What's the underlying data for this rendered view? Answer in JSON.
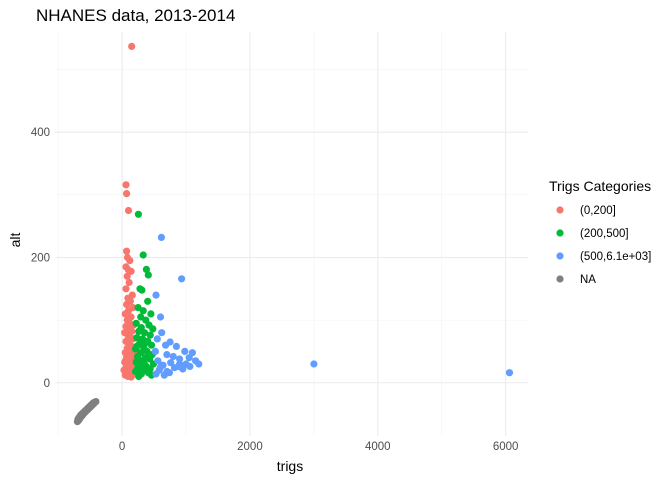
{
  "chart_data": {
    "type": "scatter",
    "title": "NHANES data, 2013-2014",
    "xlabel": "trigs",
    "ylabel": "alt",
    "xlim": [
      -1050,
      6350
    ],
    "ylim": [
      -85,
      560
    ],
    "x_ticks": [
      0,
      2000,
      4000,
      6000
    ],
    "x_minor": [
      -1000,
      1000,
      3000,
      5000
    ],
    "y_ticks": [
      0,
      200,
      400
    ],
    "y_minor": [
      -100,
      100,
      300,
      500
    ],
    "grid": true,
    "legend": {
      "title": "Trigs Categories",
      "position": "right",
      "entries": [
        {
          "label": "(0,200]",
          "color": "#F8766D"
        },
        {
          "label": "(200,500]",
          "color": "#00BA38"
        },
        {
          "label": "(500,6.1e+03]",
          "color": "#619CFF"
        },
        {
          "label": "NA",
          "color": "#7F7F7F"
        }
      ]
    },
    "series": [
      {
        "name": "(0,200]",
        "color": "#F8766D",
        "points": [
          [
            150,
            537
          ],
          [
            60,
            316
          ],
          [
            70,
            302
          ],
          [
            100,
            275
          ],
          [
            70,
            210
          ],
          [
            85,
            200
          ],
          [
            120,
            195
          ],
          [
            60,
            185
          ],
          [
            100,
            180
          ],
          [
            140,
            178
          ],
          [
            80,
            170
          ],
          [
            110,
            160
          ],
          [
            60,
            150
          ],
          [
            160,
            140
          ],
          [
            90,
            135
          ],
          [
            130,
            130
          ],
          [
            70,
            125
          ],
          [
            170,
            120
          ],
          [
            100,
            115
          ],
          [
            50,
            110
          ],
          [
            140,
            105
          ],
          [
            80,
            100
          ],
          [
            120,
            95
          ],
          [
            180,
            92
          ],
          [
            60,
            90
          ],
          [
            100,
            85
          ],
          [
            150,
            82
          ],
          [
            40,
            80
          ],
          [
            90,
            76
          ],
          [
            130,
            72
          ],
          [
            170,
            70
          ],
          [
            60,
            66
          ],
          [
            110,
            62
          ],
          [
            150,
            58
          ],
          [
            80,
            55
          ],
          [
            120,
            52
          ],
          [
            190,
            50
          ],
          [
            50,
            48
          ],
          [
            100,
            45
          ],
          [
            140,
            42
          ],
          [
            70,
            40
          ],
          [
            160,
            38
          ],
          [
            110,
            35
          ],
          [
            40,
            33
          ],
          [
            90,
            30
          ],
          [
            130,
            28
          ],
          [
            180,
            26
          ],
          [
            60,
            24
          ],
          [
            100,
            22
          ],
          [
            150,
            20
          ],
          [
            80,
            18
          ],
          [
            120,
            16
          ],
          [
            170,
            14
          ],
          [
            50,
            12
          ],
          [
            90,
            10
          ],
          [
            140,
            9
          ],
          [
            70,
            15
          ],
          [
            110,
            25
          ],
          [
            160,
            32
          ],
          [
            30,
            20
          ],
          [
            195,
            40
          ],
          [
            60,
            36
          ],
          [
            130,
            44
          ]
        ]
      },
      {
        "name": "(200,500]",
        "color": "#00BA38",
        "points": [
          [
            255,
            269
          ],
          [
            330,
            204
          ],
          [
            380,
            181
          ],
          [
            410,
            172
          ],
          [
            280,
            150
          ],
          [
            310,
            148
          ],
          [
            400,
            130
          ],
          [
            250,
            120
          ],
          [
            330,
            115
          ],
          [
            450,
            110
          ],
          [
            290,
            105
          ],
          [
            370,
            100
          ],
          [
            220,
            95
          ],
          [
            420,
            92
          ],
          [
            300,
            88
          ],
          [
            480,
            86
          ],
          [
            260,
            82
          ],
          [
            350,
            80
          ],
          [
            440,
            76
          ],
          [
            230,
            72
          ],
          [
            320,
            70
          ],
          [
            400,
            66
          ],
          [
            270,
            62
          ],
          [
            460,
            60
          ],
          [
            340,
            56
          ],
          [
            210,
            54
          ],
          [
            390,
            50
          ],
          [
            290,
            48
          ],
          [
            470,
            45
          ],
          [
            240,
            42
          ],
          [
            360,
            40
          ],
          [
            430,
            38
          ],
          [
            310,
            35
          ],
          [
            220,
            33
          ],
          [
            490,
            30
          ],
          [
            280,
            28
          ],
          [
            380,
            26
          ],
          [
            250,
            24
          ],
          [
            440,
            22
          ],
          [
            330,
            20
          ],
          [
            210,
            18
          ],
          [
            410,
            16
          ],
          [
            300,
            14
          ],
          [
            460,
            12
          ],
          [
            260,
            10
          ],
          [
            350,
            30
          ],
          [
            230,
            58
          ],
          [
            420,
            44
          ],
          [
            370,
            64
          ]
        ]
      },
      {
        "name": "(500,6.1e+03]",
        "color": "#619CFF",
        "points": [
          [
            6060,
            16
          ],
          [
            3000,
            30
          ],
          [
            615,
            232
          ],
          [
            930,
            166
          ],
          [
            530,
            140
          ],
          [
            600,
            105
          ],
          [
            750,
            65
          ],
          [
            620,
            80
          ],
          [
            550,
            70
          ],
          [
            680,
            60
          ],
          [
            850,
            58
          ],
          [
            520,
            50
          ],
          [
            980,
            50
          ],
          [
            1100,
            48
          ],
          [
            1050,
            40
          ],
          [
            900,
            38
          ],
          [
            700,
            45
          ],
          [
            800,
            42
          ],
          [
            1200,
            30
          ],
          [
            1000,
            30
          ],
          [
            560,
            35
          ],
          [
            640,
            28
          ],
          [
            760,
            32
          ],
          [
            880,
            26
          ],
          [
            1150,
            35
          ],
          [
            950,
            22
          ],
          [
            580,
            20
          ],
          [
            700,
            18
          ],
          [
            820,
            24
          ],
          [
            1060,
            26
          ],
          [
            530,
            14
          ],
          [
            660,
            12
          ],
          [
            740,
            16
          ],
          [
            600,
            25
          ],
          [
            900,
            30
          ]
        ]
      },
      {
        "name": "NA",
        "color": "#7F7F7F",
        "points": [
          [
            -690,
            -58
          ],
          [
            -670,
            -55
          ],
          [
            -650,
            -52
          ],
          [
            -630,
            -50
          ],
          [
            -610,
            -48
          ],
          [
            -590,
            -46
          ],
          [
            -570,
            -44
          ],
          [
            -550,
            -42
          ],
          [
            -530,
            -40
          ],
          [
            -510,
            -38
          ],
          [
            -490,
            -36
          ],
          [
            -470,
            -34
          ],
          [
            -450,
            -32
          ],
          [
            -430,
            -31
          ],
          [
            -410,
            -30
          ],
          [
            -700,
            -62
          ],
          [
            -680,
            -60
          ],
          [
            -660,
            -57
          ],
          [
            -640,
            -54
          ],
          [
            -620,
            -52
          ],
          [
            -600,
            -49
          ],
          [
            -580,
            -47
          ],
          [
            -560,
            -45
          ],
          [
            -540,
            -43
          ],
          [
            -520,
            -41
          ],
          [
            -500,
            -39
          ],
          [
            -480,
            -37
          ],
          [
            -460,
            -35
          ],
          [
            -440,
            -33
          ]
        ]
      }
    ]
  }
}
